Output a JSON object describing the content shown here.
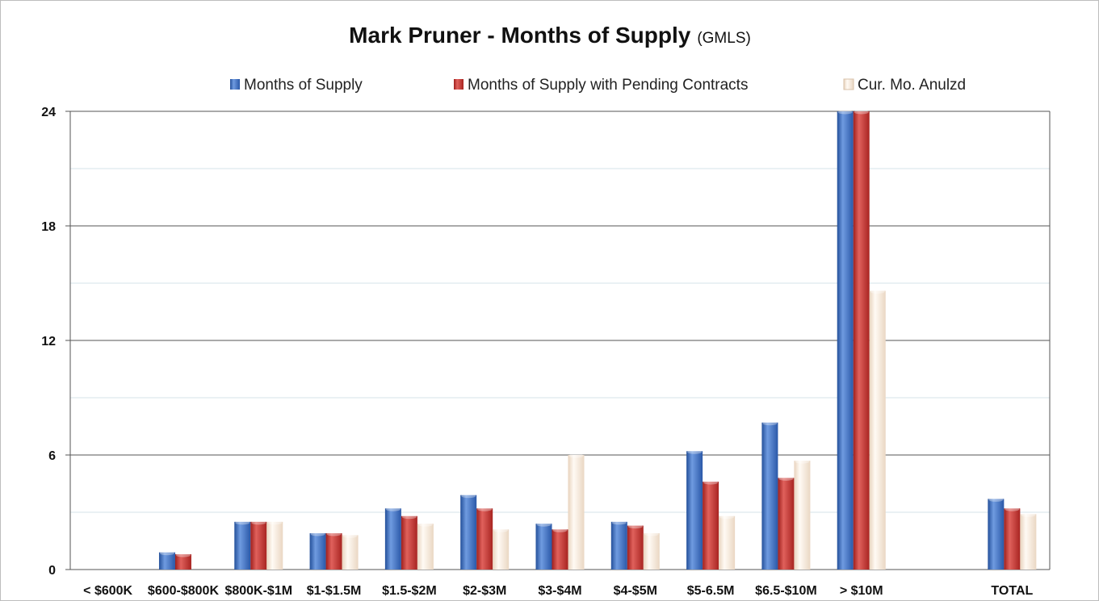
{
  "chart_data": {
    "type": "bar",
    "title": "Mark Pruner - Months of Supply",
    "subtitle": "(GMLS)",
    "categories": [
      "< $600K",
      "$600-$800K",
      "$800K-$1M",
      "$1-$1.5M",
      "$1.5-$2M",
      "$2-$3M",
      "$3-$4M",
      "$4-$5M",
      "$5-6.5M",
      "$6.5-$10M",
      "> $10M",
      "",
      "TOTAL"
    ],
    "series": [
      {
        "name": "Months of Supply",
        "color": "#3a6fc4",
        "values": [
          0,
          0.9,
          2.5,
          1.9,
          3.2,
          3.9,
          2.4,
          2.5,
          6.2,
          7.7,
          24,
          null,
          3.7
        ]
      },
      {
        "name": "Months of Supply with Pending Contracts",
        "color": "#c9302c",
        "values": [
          0,
          0.8,
          2.5,
          1.9,
          2.8,
          3.2,
          2.1,
          2.3,
          4.6,
          4.8,
          24,
          null,
          3.2
        ]
      },
      {
        "name": "Cur. Mo. Anulzd",
        "color": "#f6e6d6",
        "values": [
          0,
          0,
          2.5,
          1.8,
          2.4,
          2.1,
          6.0,
          1.9,
          2.8,
          5.7,
          14.6,
          null,
          2.9
        ]
      }
    ],
    "ylim": [
      0,
      24
    ],
    "yticks": [
      0,
      6,
      12,
      18,
      24
    ],
    "minor_gridlines": [
      3,
      9,
      15,
      21
    ],
    "grid": true,
    "legend_position": "top",
    "xlabel": "",
    "ylabel": ""
  }
}
